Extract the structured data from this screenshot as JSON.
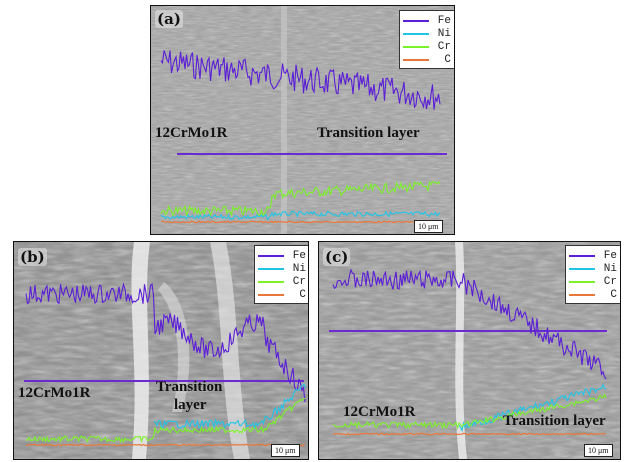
{
  "panels": [
    {
      "id": "a",
      "label": "(a)",
      "legend": [
        {
          "name": "Fe",
          "color": "#5b1fd6"
        },
        {
          "name": "Ni",
          "color": "#22c4e6"
        },
        {
          "name": "Cr",
          "color": "#7cf22a"
        },
        {
          "name": "C",
          "color": "#e8783a"
        }
      ],
      "region_labels": [
        "12CrMo1R",
        "Transition layer"
      ],
      "scale_bar": "10 μm"
    },
    {
      "id": "b",
      "label": "(b)",
      "legend": [
        {
          "name": "Fe",
          "color": "#5b1fd6"
        },
        {
          "name": "Ni",
          "color": "#22c4e6"
        },
        {
          "name": "Cr",
          "color": "#7cf22a"
        },
        {
          "name": "C",
          "color": "#e8783a"
        }
      ],
      "region_labels": [
        "12CrMo1R",
        "Transition",
        "layer"
      ],
      "scale_bar": "10 μm"
    },
    {
      "id": "c",
      "label": "(c)",
      "legend": [
        {
          "name": "Fe",
          "color": "#5b1fd6"
        },
        {
          "name": "Ni",
          "color": "#22c4e6"
        },
        {
          "name": "Cr",
          "color": "#7cf22a"
        },
        {
          "name": "C",
          "color": "#e8783a"
        }
      ],
      "region_labels": [
        "12CrMo1R",
        "Transition layer"
      ],
      "scale_bar": "10 μm"
    }
  ]
}
